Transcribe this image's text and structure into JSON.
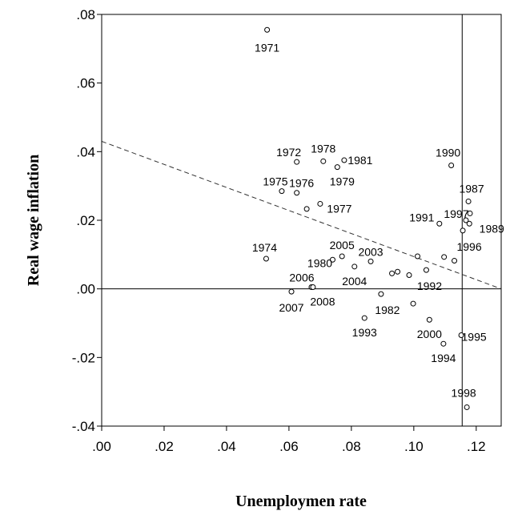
{
  "chart_data": {
    "type": "scatter",
    "title": "",
    "xlabel": "Unemploymen rate",
    "ylabel": "Real wage inflation",
    "xlim": [
      0,
      0.128
    ],
    "ylim": [
      -0.04,
      0.08
    ],
    "x_ticks": [
      ".00",
      ".02",
      ".04",
      ".06",
      ".08",
      ".10",
      ".12"
    ],
    "y_ticks": [
      ".08",
      ".06",
      ".04",
      ".02",
      ".00",
      "-.02",
      "-.04"
    ],
    "grid": false,
    "legend": "none",
    "points": [
      {
        "label": "1971",
        "x": 0.053,
        "y": 0.0755
      },
      {
        "label": "1972",
        "x": 0.0625,
        "y": 0.037
      },
      {
        "label": "1978",
        "x": 0.071,
        "y": 0.0372
      },
      {
        "label": "1979",
        "x": 0.0755,
        "y": 0.0355
      },
      {
        "label": "1981",
        "x": 0.0777,
        "y": 0.0375
      },
      {
        "label": "1975",
        "x": 0.0577,
        "y": 0.0285
      },
      {
        "label": "1976",
        "x": 0.0625,
        "y": 0.028
      },
      {
        "label": "1977",
        "x": 0.07,
        "y": 0.0248
      },
      {
        "label": "1974",
        "x": 0.0527,
        "y": 0.0088
      },
      {
        "label": "",
        "x": 0.0657,
        "y": 0.0233
      },
      {
        "label": "1980",
        "x": 0.074,
        "y": 0.0085
      },
      {
        "label": "2005",
        "x": 0.077,
        "y": 0.0095
      },
      {
        "label": "2003",
        "x": 0.0862,
        "y": 0.008
      },
      {
        "label": "2004",
        "x": 0.081,
        "y": 0.0065
      },
      {
        "label": "2006",
        "x": 0.0672,
        "y": 0.0005
      },
      {
        "label": "2008",
        "x": 0.0677,
        "y": 0.0005
      },
      {
        "label": "2007",
        "x": 0.0608,
        "y": -0.0008
      },
      {
        "label": "1982",
        "x": 0.0895,
        "y": -0.0015
      },
      {
        "label": "",
        "x": 0.093,
        "y": 0.0045
      },
      {
        "label": "",
        "x": 0.0948,
        "y": 0.005
      },
      {
        "label": "1992",
        "x": 0.104,
        "y": 0.0055
      },
      {
        "label": "",
        "x": 0.0985,
        "y": 0.004
      },
      {
        "label": "",
        "x": 0.1012,
        "y": 0.0095
      },
      {
        "label": "1993",
        "x": 0.0842,
        "y": -0.0085
      },
      {
        "label": "",
        "x": 0.0998,
        "y": -0.0043
      },
      {
        "label": "2000",
        "x": 0.105,
        "y": -0.009
      },
      {
        "label": "1994",
        "x": 0.1095,
        "y": -0.016
      },
      {
        "label": "1995",
        "x": 0.1152,
        "y": -0.0135
      },
      {
        "label": "1998",
        "x": 0.117,
        "y": -0.0345
      },
      {
        "label": "1990",
        "x": 0.112,
        "y": 0.036
      },
      {
        "label": "1987",
        "x": 0.1175,
        "y": 0.0255
      },
      {
        "label": "1991",
        "x": 0.1082,
        "y": 0.019
      },
      {
        "label": "1997",
        "x": 0.1167,
        "y": 0.02
      },
      {
        "label": "",
        "x": 0.118,
        "y": 0.022
      },
      {
        "label": "1989",
        "x": 0.1178,
        "y": 0.019
      },
      {
        "label": "1996",
        "x": 0.1157,
        "y": 0.017
      },
      {
        "label": "",
        "x": 0.1097,
        "y": 0.0093
      },
      {
        "label": "",
        "x": 0.113,
        "y": 0.0082
      }
    ],
    "reference_lines": {
      "horizontal_y": 0.0,
      "vertical_x": 0.1155,
      "regression": {
        "x1": 0.0,
        "y1": 0.043,
        "x2": 0.128,
        "y2": 0.0
      }
    }
  }
}
